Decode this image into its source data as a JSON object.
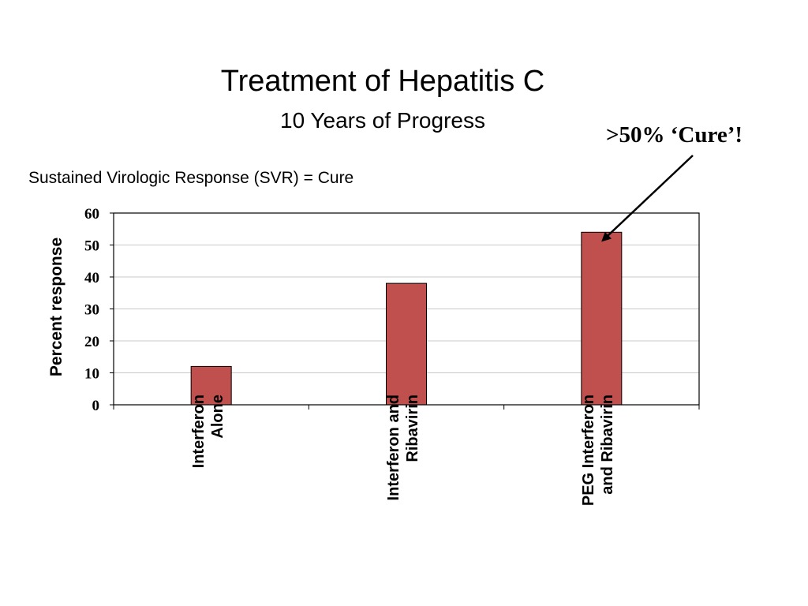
{
  "slide": {
    "title": "Treatment of Hepatitis C",
    "subtitle": "10 Years of Progress",
    "note": "Sustained Virologic Response (SVR) = Cure",
    "callout": ">50% ‘Cure’!"
  },
  "colors": {
    "bar": "#c0504d",
    "bar_stroke": "#000000",
    "grid": "#c8c8c8",
    "arrow": "#000000"
  },
  "chart_data": {
    "type": "bar",
    "title": "",
    "xlabel": "",
    "ylabel": "Percent response",
    "categories": [
      "Interferon\nAlone",
      "Interferon and\nRibavirin",
      "PEG Interferon\nand Ribavirin"
    ],
    "values": [
      12,
      38,
      54
    ],
    "ylim": [
      0,
      60
    ],
    "yticks": [
      "0",
      "10",
      "20",
      "30",
      "40",
      "50",
      "60"
    ],
    "grid": true,
    "legend": "none",
    "annotation": {
      "text": ">50% ‘Cure’!",
      "points_to_category": 2
    }
  }
}
